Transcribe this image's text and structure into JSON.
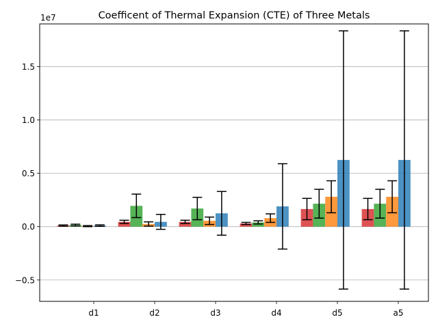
{
  "chart_data": {
    "type": "bar",
    "title": "Coefficent of Thermal Expansion (CTE) of Three Metals",
    "xlabel": "",
    "ylabel": "",
    "y_offset_label": "1e7",
    "categories": [
      "d1",
      "d2",
      "d3",
      "d4",
      "d5",
      "a5"
    ],
    "ylim": [
      -7000000,
      19000000
    ],
    "yticks": [
      -5000000,
      0,
      5000000,
      10000000,
      15000000
    ],
    "ytick_labels": [
      "−0.5",
      "0.0",
      "0.5",
      "1.0",
      "1.5"
    ],
    "grid": "horizontal",
    "legend": "none",
    "series": [
      {
        "color": "#d62728",
        "values": [
          100000,
          450000,
          450000,
          300000,
          1650000,
          1650000
        ],
        "errors": [
          60000,
          150000,
          150000,
          100000,
          1000000,
          1000000
        ]
      },
      {
        "color": "#2ca02c",
        "values": [
          150000,
          1950000,
          1700000,
          400000,
          2150000,
          2150000
        ],
        "errors": [
          80000,
          1100000,
          1050000,
          150000,
          1350000,
          1350000
        ]
      },
      {
        "color": "#ff7f0e",
        "values": [
          50000,
          250000,
          550000,
          800000,
          2800000,
          2800000
        ],
        "errors": [
          50000,
          200000,
          350000,
          400000,
          1500000,
          1500000
        ]
      },
      {
        "color": "#1f77b4",
        "values": [
          100000,
          450000,
          1250000,
          1900000,
          6250000,
          6250000
        ],
        "errors": [
          70000,
          700000,
          2050000,
          4000000,
          12100000,
          12100000
        ]
      }
    ]
  }
}
